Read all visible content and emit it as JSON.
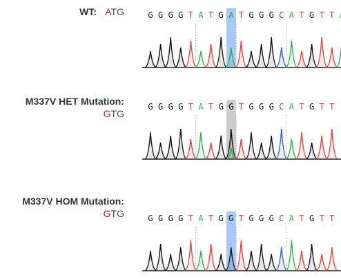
{
  "colors": {
    "A": "#2bb34a",
    "T": "#e8413c",
    "G": "#111111",
    "C": "#2f5fe0",
    "highlight_blue": "#a8c8f5",
    "highlight_grey": "#cccccc",
    "mutation_red": "#d11a1a"
  },
  "panels": [
    {
      "id": "wt",
      "title": "WT:",
      "codon_first": "A",
      "codon_rest": "TG",
      "sequence": [
        "G",
        "G",
        "G",
        "G",
        "T",
        "A",
        "T",
        "G",
        "A",
        "T",
        "G",
        "G",
        "G",
        "C",
        "A",
        "T",
        "G",
        "T",
        "T",
        "A"
      ],
      "highlight_color": "blue",
      "highlight_index": 8
    },
    {
      "id": "het",
      "title": "M337V HET Mutation:",
      "codon_first": "G",
      "codon_rest": "TG",
      "sequence": [
        "G",
        "G",
        "G",
        "G",
        "T",
        "A",
        "T",
        "G",
        "G",
        "T",
        "G",
        "G",
        "G",
        "C",
        "A",
        "T",
        "G",
        "T",
        "T"
      ],
      "highlight_color": "grey",
      "highlight_index": 8
    },
    {
      "id": "hom",
      "title": "M337V HOM Mutation:",
      "codon_first": "G",
      "codon_rest": "TG",
      "sequence": [
        "G",
        "G",
        "G",
        "G",
        "T",
        "A",
        "T",
        "G",
        "G",
        "T",
        "G",
        "G",
        "G",
        "C",
        "A",
        "T",
        "G",
        "T",
        "T"
      ],
      "highlight_color": "blue",
      "highlight_index": 8
    }
  ]
}
